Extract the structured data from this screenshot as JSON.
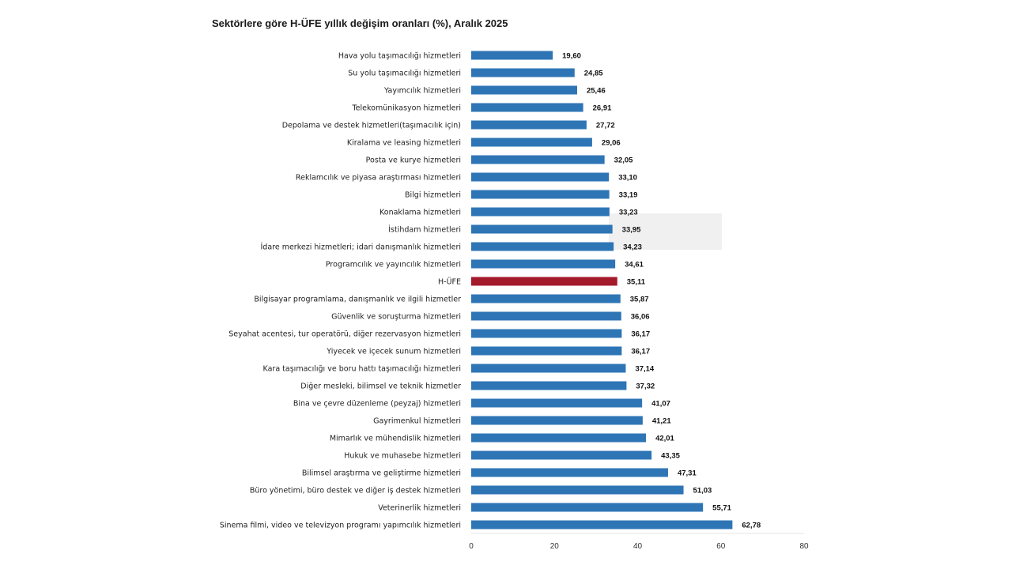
{
  "chart_data": {
    "type": "bar",
    "orientation": "horizontal",
    "title": "Sektörlere göre H-ÜFE yıllık değişim oranları (%), Aralık 2025",
    "xlabel": "",
    "ylabel": "",
    "xlim": [
      0,
      80
    ],
    "ticks": [
      "0",
      "20",
      "40",
      "60",
      "80"
    ],
    "tick_values": [
      0,
      20,
      40,
      60,
      80
    ],
    "grid": false,
    "legend": "none",
    "colors": {
      "default": "#2e75b6",
      "highlight": "#a31a2b"
    },
    "highlight_category": "H-ÜFE",
    "categories": [
      "Hava yolu taşımacılığı hizmetleri",
      "Su yolu taşımacılığı hizmetleri",
      "Yayımcılık hizmetleri",
      "Telekomünikasyon hizmetleri",
      "Depolama ve destek hizmetleri(taşımacılık için)",
      "Kiralama ve leasing hizmetleri",
      "Posta ve kurye hizmetleri",
      "Reklamcılık ve piyasa araştırması hizmetleri",
      "Bilgi hizmetleri",
      "Konaklama hizmetleri",
      "İstihdam hizmetleri",
      "İdare merkezi hizmetleri; idari danışmanlık hizmetleri",
      "Programcılık ve yayıncılık hizmetleri",
      "H-ÜFE",
      "Bilgisayar programlama, danışmanlık ve ilgili hizmetler",
      "Güvenlik ve soruşturma hizmetleri",
      "Seyahat acentesi, tur operatörü, diğer rezervasyon hizmetleri",
      "Yiyecek ve içecek sunum hizmetleri",
      "Kara taşımacılığı ve boru hattı taşımacılığı hizmetleri",
      "Diğer mesleki, bilimsel ve teknik hizmetler",
      "Bina ve çevre düzenleme (peyzaj) hizmetleri",
      "Gayrimenkul hizmetleri",
      "Mimarlık ve mühendislik hizmetleri",
      "Hukuk ve muhasebe hizmetleri",
      "Bilimsel araştırma ve geliştirme hizmetleri",
      "Büro yönetimi, büro destek ve diğer iş destek hizmetleri",
      "Veterinerlik hizmetleri",
      "Sinema filmi, video ve televizyon programı yapımcılık hizmetleri"
    ],
    "values": [
      19.6,
      24.85,
      25.46,
      26.91,
      27.72,
      29.06,
      32.05,
      33.1,
      33.19,
      33.23,
      33.95,
      34.23,
      34.61,
      35.11,
      35.87,
      36.06,
      36.17,
      36.17,
      37.14,
      37.32,
      41.07,
      41.21,
      42.01,
      43.35,
      47.31,
      51.03,
      55.71,
      62.78
    ],
    "value_labels": [
      "19,60",
      "24,85",
      "25,46",
      "26,91",
      "27,72",
      "29,06",
      "32,05",
      "33,10",
      "33,19",
      "33,23",
      "33,95",
      "34,23",
      "34,61",
      "35,11",
      "35,87",
      "36,06",
      "36,17",
      "36,17",
      "37,14",
      "37,32",
      "41,07",
      "41,21",
      "42,01",
      "43,35",
      "47,31",
      "51,03",
      "55,71",
      "62,78"
    ]
  }
}
